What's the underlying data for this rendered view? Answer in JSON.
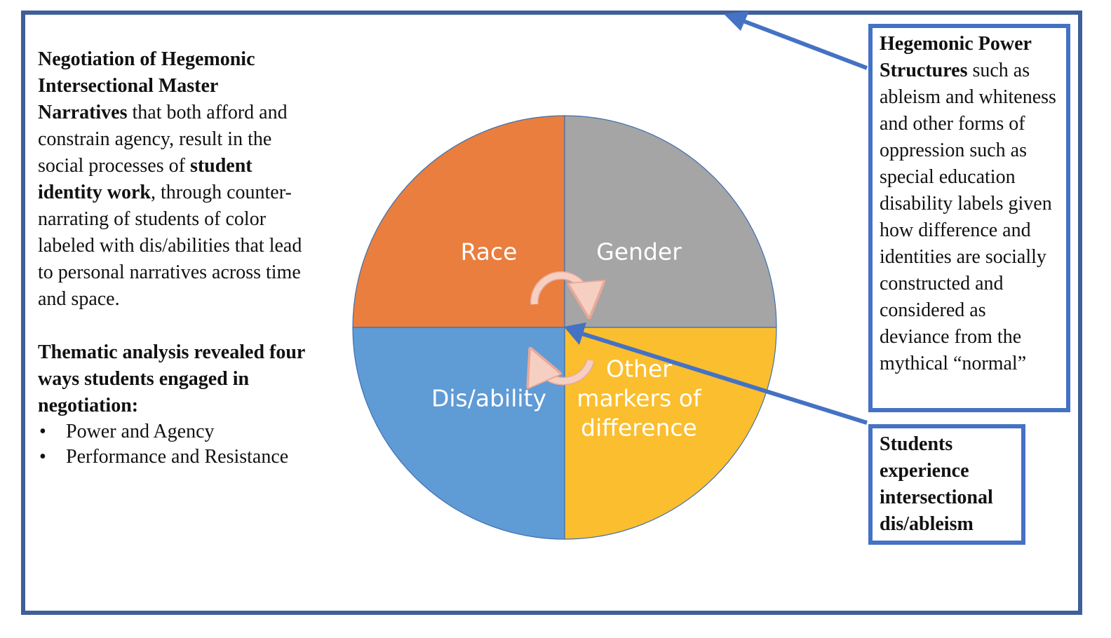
{
  "left_panel": {
    "p1_bold_1": "Negotiation of Hegemonic Intersectional Master Narratives",
    "p1_text_1": " that both afford and constrain agency, result in the social processes of ",
    "p1_bold_2": "student identity work",
    "p1_text_2": ", through counter-narrating of students of color labeled with dis/abilities that lead to personal narratives across time and space.",
    "p2_bold": "Thematic analysis revealed four ways students engaged in negotiation:",
    "bullets": [
      "Power and Agency",
      "Performance and Resistance"
    ]
  },
  "pie": {
    "segments": [
      {
        "label": "Race",
        "color": "#E97E3E",
        "value": 1
      },
      {
        "label": "Gender",
        "color": "#A5A5A5",
        "value": 1
      },
      {
        "label": "Other markers of difference",
        "label_lines": [
          "Other",
          "markers of",
          "difference"
        ],
        "color": "#FBBE2E",
        "value": 1
      },
      {
        "label": "Dis/ability",
        "color": "#5F9BD5",
        "value": 1
      }
    ],
    "cycle_arrow_color": "#F5CFC2"
  },
  "callouts": {
    "hegemonic_bold": "Hegemonic Power Structures",
    "hegemonic_text": " such as ableism and whiteness and other forms of oppression such as special education disability labels given how difference and identities are socially constructed and considered as deviance from the mythical “normal”",
    "students": "Students experience intersectional dis/ableism"
  },
  "colors": {
    "frame": "#3F5F9A",
    "callout_border": "#4472C4",
    "arrow": "#4472C4"
  }
}
